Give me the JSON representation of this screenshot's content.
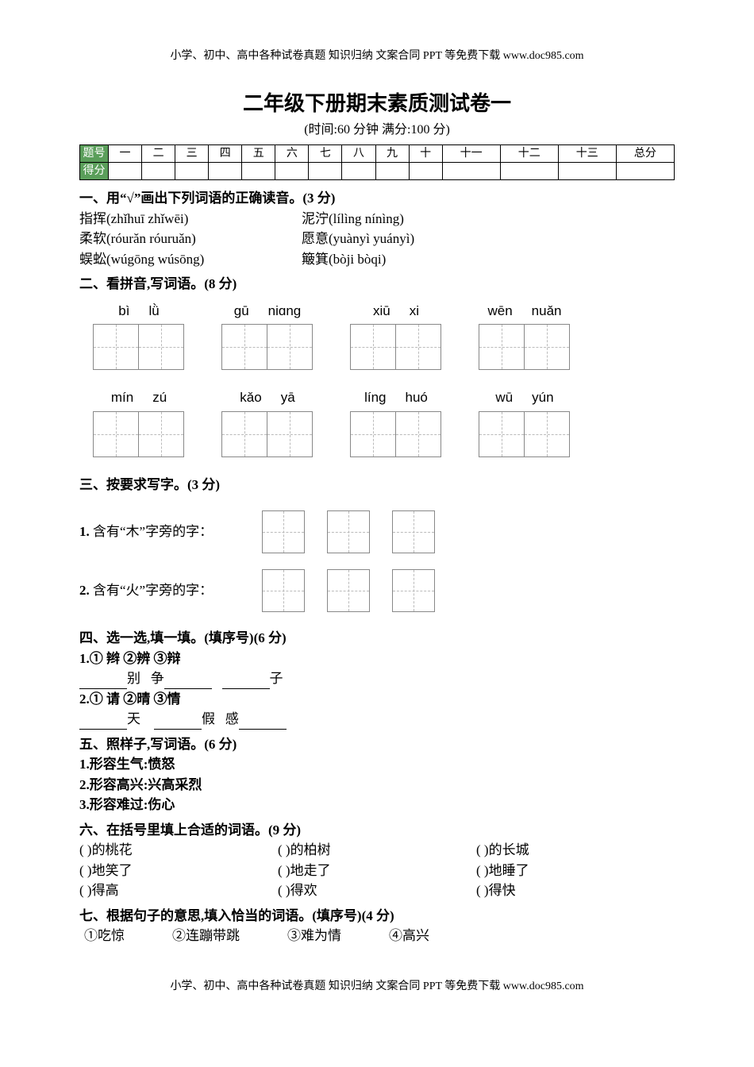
{
  "header": "小学、初中、高中各种试卷真题 知识归纳 文案合同 PPT 等免费下载   www.doc985.com",
  "footer": "小学、初中、高中各种试卷真题 知识归纳 文案合同 PPT 等免费下载   www.doc985.com",
  "title": "二年级下册期末素质测试卷一",
  "subtitle": "(时间:60 分钟   满分:100 分)",
  "score_table": {
    "row1_label": "题号",
    "row2_label": "得分",
    "cols": [
      "一",
      "二",
      "三",
      "四",
      "五",
      "六",
      "七",
      "八",
      "九",
      "十",
      "十一",
      "十二",
      "十三",
      "总分"
    ]
  },
  "q1": {
    "heading": "一、用“√”画出下列词语的正确读音。(3 分)",
    "items": [
      {
        "l": "指挥(zhǐhuī   zhǐwēi)",
        "r": "泥泞(lílìng   nínìng)"
      },
      {
        "l": "柔软(róurǎn   róuruǎn)",
        "r": "愿意(yuànyì   yuányì)"
      },
      {
        "l": "蜈蚣(wúgōng   wúsōng)",
        "r": "簸箕(bòji   bòqi)"
      }
    ]
  },
  "q2": {
    "heading": "二、看拼音,写词语。(8 分)",
    "row1": [
      {
        "py": [
          "bì",
          "lǜ"
        ]
      },
      {
        "py": [
          "gū",
          "niɑng"
        ]
      },
      {
        "py": [
          "xiū",
          "xi"
        ]
      },
      {
        "py": [
          "wēn",
          "nuǎn"
        ]
      }
    ],
    "row2": [
      {
        "py": [
          "mín",
          "zú"
        ]
      },
      {
        "py": [
          "kǎo",
          "yā"
        ]
      },
      {
        "py": [
          "líng",
          "huó"
        ]
      },
      {
        "py": [
          "wū",
          "yún"
        ]
      }
    ]
  },
  "q3": {
    "heading": "三、按要求写字。(3 分)",
    "p1_num": "1.",
    "p1": " 含有“木”字旁的字：",
    "p2_num": "2.",
    "p2": " 含有“火”字旁的字："
  },
  "q4": {
    "heading": "四、选一选,填一填。(填序号)(6 分)",
    "r1a": "1.① 辫     ②辨     ③辩",
    "r1b_a": "别",
    "r1b_b": "争",
    "r1b_c": "子",
    "r2a": "2.① 请     ②晴     ③情",
    "r2b_a": "天",
    "r2b_b": "假",
    "r2b_c": "感"
  },
  "q5": {
    "heading": "五、照样子,写词语。(6 分)",
    "l1": "1.形容生气:愤怒",
    "l2": "2.形容高兴:兴高采烈",
    "l3": "3.形容难过:伤心"
  },
  "q6": {
    "heading": "六、在括号里填上合适的词语。(9 分)",
    "cells": [
      [
        "(            )的桃花",
        "(            )的柏树",
        "(            )的长城"
      ],
      [
        "(            )地笑了",
        "(            )地走了",
        "(            )地睡了"
      ],
      [
        "(            )得高",
        "(            )得欢",
        "(            )得快"
      ]
    ]
  },
  "q7": {
    "heading": "七、根据句子的意思,填入恰当的词语。(填序号)(4 分)",
    "opts": [
      "①吃惊",
      "②连蹦带跳",
      "③难为情",
      "④高兴"
    ]
  }
}
